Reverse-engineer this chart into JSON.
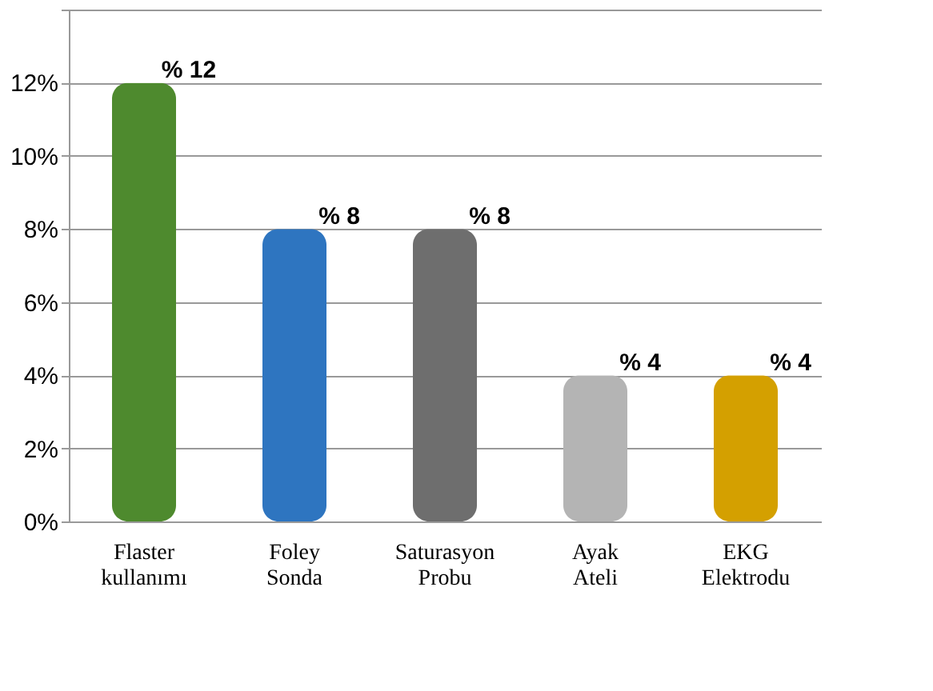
{
  "chart_data": {
    "type": "bar",
    "categories": [
      "Flaster kullanımı",
      "Foley Sonda",
      "Saturasyon Probu",
      "Ayak Ateli",
      "EKG Elektrodu"
    ],
    "values": [
      12,
      8,
      8,
      4,
      4
    ],
    "colors": [
      "#4e8a2e",
      "#2e75c0",
      "#6e6e6e",
      "#b4b4b4",
      "#d4a000"
    ],
    "value_labels": [
      "% 12",
      "% 8",
      "% 8",
      "% 4",
      "% 4"
    ],
    "ylim": [
      0,
      14
    ],
    "yticks": [
      {
        "value": 0,
        "label": "0%"
      },
      {
        "value": 2,
        "label": "2%"
      },
      {
        "value": 4,
        "label": "4%"
      },
      {
        "value": 6,
        "label": "6%"
      },
      {
        "value": 8,
        "label": "8%"
      },
      {
        "value": 10,
        "label": "10%"
      },
      {
        "value": 12,
        "label": "12%"
      },
      {
        "value": 14,
        "label": null
      }
    ],
    "grid": "y"
  }
}
